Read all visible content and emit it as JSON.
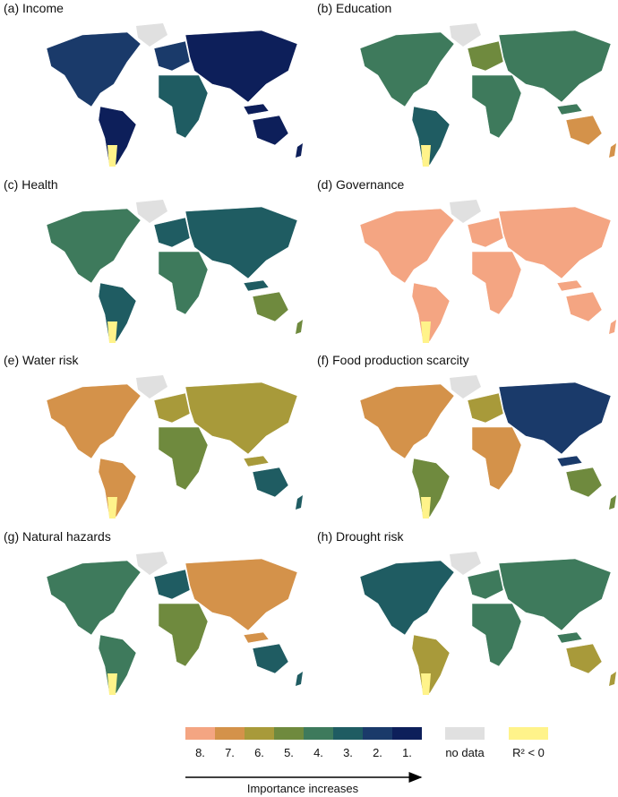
{
  "panels": [
    {
      "title": "(a) Income"
    },
    {
      "title": "(b) Education"
    },
    {
      "title": "(c) Health"
    },
    {
      "title": "(d) Governance"
    },
    {
      "title": "(e) Water risk"
    },
    {
      "title": "(f) Food production scarcity"
    },
    {
      "title": "(g) Natural hazards"
    },
    {
      "title": "(h) Drought risk"
    }
  ],
  "legend": {
    "items": [
      {
        "label": "8.",
        "color": "#f4a582"
      },
      {
        "label": "7.",
        "color": "#d4924a"
      },
      {
        "label": "6.",
        "color": "#a89a3a"
      },
      {
        "label": "5.",
        "color": "#6f8a3e"
      },
      {
        "label": "4.",
        "color": "#3e7a5c"
      },
      {
        "label": "3.",
        "color": "#1f5c62"
      },
      {
        "label": "2.",
        "color": "#1a3a6a"
      },
      {
        "label": "1.",
        "color": "#0d1f5a"
      }
    ],
    "no_data": {
      "label": "no data",
      "color": "#e0e0e0"
    },
    "negative": {
      "label": "R² < 0",
      "color": "#fff38a"
    },
    "arrow_label": "Importance increases"
  }
}
